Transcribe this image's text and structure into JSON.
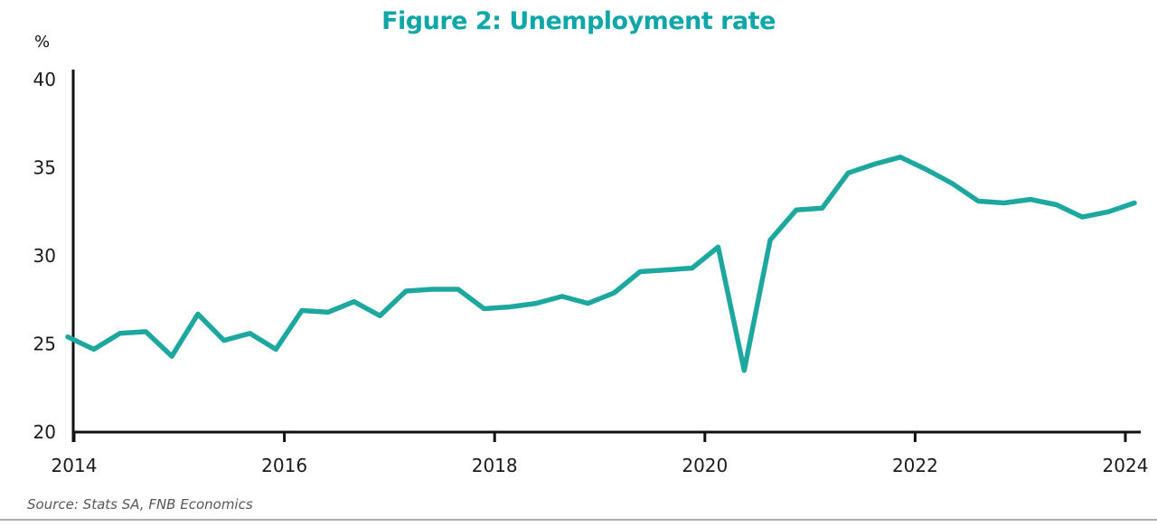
{
  "title": "Figure 2: Unemployment rate",
  "axis": {
    "unit_label": "%",
    "y_ticks": [
      "40",
      "35",
      "30",
      "25",
      "20"
    ],
    "x_ticks": [
      "2014",
      "2016",
      "2018",
      "2020",
      "2022",
      "2024"
    ]
  },
  "source": "Source: Stats SA, FNB Economics",
  "colors": {
    "title": "#0FA6A8",
    "line": "#1EA79E",
    "axis": "#111111",
    "source_text": "#575757",
    "divider": "#ADADAD"
  },
  "chart_data": {
    "type": "line",
    "title": "Figure 2: Unemployment rate",
    "xlabel": "",
    "ylabel": "%",
    "ylim": [
      20,
      40
    ],
    "y_tick_values": [
      40,
      35,
      30,
      25,
      20
    ],
    "x_tick_years": [
      2014,
      2016,
      2018,
      2020,
      2022,
      2024
    ],
    "grid": false,
    "legend_position": "none",
    "series": [
      {
        "name": "Unemployment rate",
        "quarters": [
          "2013Q4",
          "2014Q1",
          "2014Q2",
          "2014Q3",
          "2014Q4",
          "2015Q1",
          "2015Q2",
          "2015Q3",
          "2015Q4",
          "2016Q1",
          "2016Q2",
          "2016Q3",
          "2016Q4",
          "2017Q1",
          "2017Q2",
          "2017Q3",
          "2017Q4",
          "2018Q1",
          "2018Q2",
          "2018Q3",
          "2018Q4",
          "2019Q1",
          "2019Q2",
          "2019Q3",
          "2019Q4",
          "2020Q1",
          "2020Q2",
          "2020Q3",
          "2020Q4",
          "2021Q1",
          "2021Q2",
          "2021Q3",
          "2021Q4",
          "2022Q1",
          "2022Q2",
          "2022Q3",
          "2022Q4",
          "2023Q1",
          "2023Q2",
          "2023Q3",
          "2023Q4",
          "2024Q1"
        ],
        "values": [
          25.4,
          24.7,
          25.6,
          25.7,
          24.3,
          26.7,
          25.2,
          25.6,
          24.7,
          26.9,
          26.8,
          27.4,
          26.6,
          28.0,
          28.1,
          28.1,
          27.0,
          27.1,
          27.3,
          27.7,
          27.3,
          27.9,
          29.1,
          29.2,
          29.3,
          30.5,
          23.5,
          30.9,
          32.6,
          32.7,
          34.7,
          35.2,
          35.6,
          34.9,
          34.1,
          33.1,
          33.0,
          33.2,
          32.9,
          32.2,
          32.5,
          33.0
        ]
      }
    ]
  }
}
